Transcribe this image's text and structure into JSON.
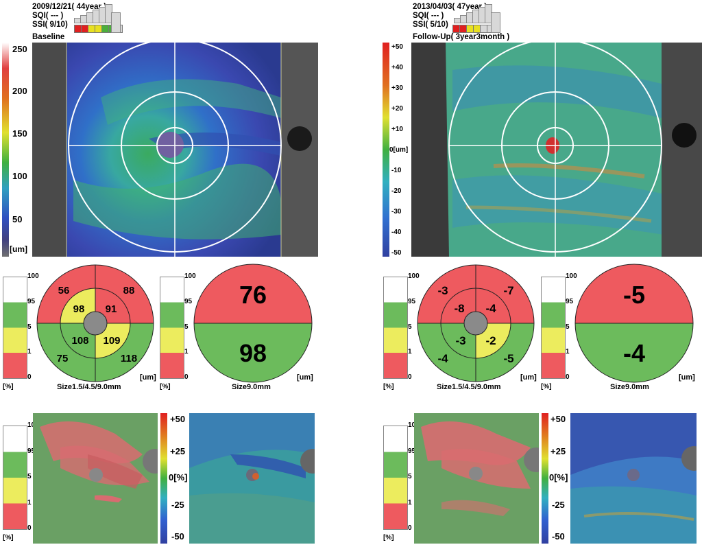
{
  "left": {
    "date_line": "2009/12/21( 44year )",
    "sqi": "SQI( --- )",
    "ssi": "SSI( 9/10)",
    "title": "Baseline",
    "colorbar_ticks": [
      "250",
      "200",
      "150",
      "100",
      "50"
    ],
    "colorbar_unit": "[um]",
    "sector_map": {
      "values": {
        "outer_top_left": "56",
        "outer_top_right": "88",
        "inner_top_left": "98",
        "inner_top_right": "91",
        "inner_bottom_left": "108",
        "inner_bottom_right": "109",
        "outer_bottom_left": "75",
        "outer_bottom_right": "118"
      },
      "unit": "[um]",
      "caption": "Size1.5/4.5/9.0mm"
    },
    "half_map": {
      "top": "76",
      "bottom": "98",
      "unit": "[um]",
      "caption": "Size9.0mm"
    },
    "deviation_bar": {
      "max": "+50",
      "p25": "+25",
      "zero": "0[%]",
      "m25": "-25",
      "min": "-50"
    }
  },
  "right": {
    "date_line": "2013/04/03( 47year )",
    "sqi": "SQI( --- )",
    "ssi": "SSI( 5/10)",
    "title": "Follow-Up( 3year3month )",
    "colorbar_ticks": [
      "+50",
      "+40",
      "+30",
      "+20",
      "+10",
      "0[um]",
      "-10",
      "-20",
      "-30",
      "-40",
      "-50"
    ],
    "sector_map": {
      "values": {
        "outer_top_left": "-3",
        "outer_top_right": "-7",
        "inner_top_left": "-8",
        "inner_top_right": "-4",
        "inner_bottom_left": "-3",
        "inner_bottom_right": "-2",
        "outer_bottom_left": "-4",
        "outer_bottom_right": "-5"
      },
      "unit": "[um]",
      "caption": "Size1.5/4.5/9.0mm"
    },
    "half_map": {
      "top": "-5",
      "bottom": "-4",
      "unit": "[um]",
      "caption": "Size9.0mm"
    },
    "deviation_bar": {
      "max": "+50",
      "p25": "+25",
      "zero": "0[%]",
      "m25": "-25",
      "min": "-50"
    }
  },
  "percentile_scale": {
    "labels": [
      "100",
      "95",
      "5",
      "1",
      "0"
    ],
    "unit": "[%]"
  },
  "colors": {
    "red": "#ee5a5f",
    "yellow": "#ecec5e",
    "green": "#6cbb5c",
    "white": "#ffffff",
    "center_gray": "#8a8a8a"
  }
}
